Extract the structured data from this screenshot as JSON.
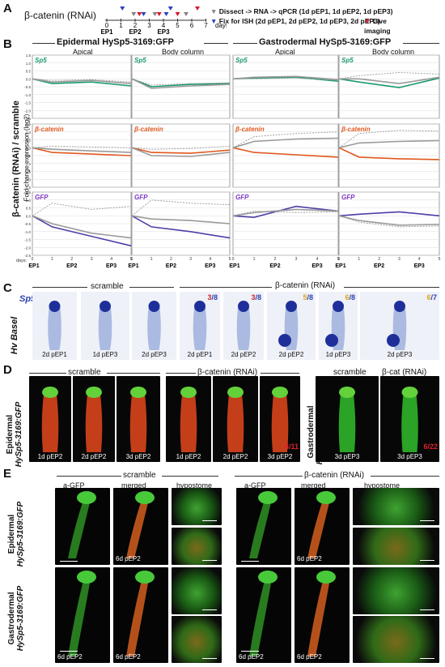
{
  "panelA": {
    "letter": "A",
    "title": "β-catenin (RNAi)",
    "axis_ticks": [
      "0",
      "1",
      "2",
      "3",
      "4",
      "5",
      "6",
      "7"
    ],
    "axis_unit": "days",
    "ep_labels": [
      "EP1",
      "EP2",
      "EP3"
    ],
    "legend": [
      {
        "text": "Dissect -> RNA -> qPCR (1d pEP1, 1d pEP2, 1d pEP3)",
        "color": "#8a7f82"
      },
      {
        "text": "Fix for ISH (2d pEP1, 2d pEP2, 1d pEP3, 2d pEP3)",
        "color": "#2b3fbf"
      },
      {
        "text": "Live imaging",
        "color": "#d61a2a"
      }
    ]
  },
  "panelB": {
    "letter": "B",
    "groups": [
      "Epidermal HySp5-3169:GFP",
      "Gastrodermal HySp5-3169:GFP"
    ],
    "subgroups": [
      "Apical",
      "Body column",
      "Apical",
      "Body column"
    ],
    "ylabel_main": "β-catenin (RNAi) / scramble",
    "ylabel_sub": "Fold change expression (log2)",
    "xlabel_prefix": "days:",
    "x_ticks": [
      "0",
      "1",
      "2",
      "3",
      "4",
      "5"
    ],
    "ep_ticks": [
      "EP1",
      "EP2",
      "EP3"
    ],
    "y_ticks": [
      "1.5",
      "1.0",
      "0.5",
      "0.0",
      "-0.5",
      "-1.0",
      "-1.5",
      "-2.0",
      "-2.5"
    ],
    "rows": [
      {
        "gene": "Sp5",
        "color": "#1a9a6a"
      },
      {
        "gene": "β-catenin",
        "color": "#e0581f"
      },
      {
        "gene": "GFP",
        "color": "#7b33c8"
      }
    ]
  },
  "chart_data": {
    "type": "line",
    "x": [
      0,
      1,
      3,
      5
    ],
    "ylim": [
      -2.5,
      1.5
    ],
    "ylabel": "Fold change expression (log2)",
    "charts": [
      {
        "row": "Sp5",
        "col": "Epidermal Apical",
        "series": [
          {
            "values": [
              0,
              -0.3,
              -0.2,
              -0.45
            ]
          },
          {
            "values": [
              0,
              -0.2,
              -0.1,
              -0.3
            ]
          },
          {
            "values": [
              0,
              -0.1,
              -0.05,
              -0.2
            ]
          }
        ]
      },
      {
        "row": "Sp5",
        "col": "Epidermal Body column",
        "series": [
          {
            "values": [
              0,
              -0.5,
              -0.35,
              -0.3
            ]
          },
          {
            "values": [
              0,
              -0.6,
              -0.45,
              -0.35
            ]
          },
          {
            "values": [
              0,
              -0.4,
              -0.3,
              -0.25
            ]
          }
        ]
      },
      {
        "row": "Sp5",
        "col": "Gastrodermal Apical",
        "series": [
          {
            "values": [
              0,
              0.05,
              0.1,
              -0.15
            ]
          },
          {
            "values": [
              0,
              0.1,
              0.15,
              -0.05
            ]
          },
          {
            "values": [
              0,
              0.0,
              0.05,
              -0.1
            ]
          }
        ]
      },
      {
        "row": "Sp5",
        "col": "Gastrodermal Body column",
        "series": [
          {
            "values": [
              0,
              -0.2,
              -0.55,
              0.05
            ]
          },
          {
            "values": [
              0,
              0,
              -0.3,
              0.1
            ]
          },
          {
            "values": [
              0,
              0.2,
              0.4,
              0.3
            ]
          }
        ]
      },
      {
        "row": "β-catenin",
        "col": "Epidermal Apical",
        "series": [
          {
            "values": [
              0,
              -0.3,
              -0.4,
              -0.5
            ]
          },
          {
            "values": [
              0,
              -0.1,
              -0.2,
              -0.3
            ]
          },
          {
            "values": [
              0,
              0.1,
              0.05,
              0.0
            ]
          }
        ]
      },
      {
        "row": "β-catenin",
        "col": "Epidermal Body column",
        "series": [
          {
            "values": [
              0,
              -0.3,
              -0.35,
              -0.15
            ]
          },
          {
            "values": [
              0,
              -0.5,
              -0.55,
              -0.3
            ]
          },
          {
            "values": [
              0,
              -0.1,
              -0.05,
              0.1
            ]
          }
        ]
      },
      {
        "row": "β-catenin",
        "col": "Gastrodermal Apical",
        "series": [
          {
            "values": [
              0,
              -0.3,
              -0.45,
              -0.6
            ]
          },
          {
            "values": [
              0,
              0.4,
              0.55,
              0.6
            ]
          },
          {
            "values": [
              0,
              0.7,
              0.9,
              1.0
            ]
          }
        ]
      },
      {
        "row": "β-catenin",
        "col": "Gastrodermal Body column",
        "series": [
          {
            "values": [
              0,
              -0.6,
              -0.7,
              -0.75
            ]
          },
          {
            "values": [
              0,
              0.3,
              0.4,
              0.45
            ]
          },
          {
            "values": [
              0,
              0.9,
              1.1,
              1.05
            ]
          }
        ]
      },
      {
        "row": "GFP",
        "col": "Epidermal Apical",
        "series": [
          {
            "values": [
              0,
              -0.7,
              -1.3,
              -1.9
            ]
          },
          {
            "values": [
              0,
              -0.5,
              -1.1,
              -1.4
            ]
          },
          {
            "values": [
              0,
              0.8,
              0.4,
              0.6
            ]
          }
        ]
      },
      {
        "row": "GFP",
        "col": "Epidermal Body column",
        "series": [
          {
            "values": [
              0,
              -0.7,
              -1.0,
              -1.4
            ]
          },
          {
            "values": [
              0,
              -0.2,
              -0.3,
              -0.5
            ]
          },
          {
            "values": [
              0,
              1.0,
              0.8,
              0.7
            ]
          }
        ]
      },
      {
        "row": "GFP",
        "col": "Gastrodermal Apical",
        "series": [
          {
            "values": [
              0,
              -0.1,
              0.6,
              0.3
            ]
          },
          {
            "values": [
              0,
              0.2,
              0.4,
              0.3
            ]
          },
          {
            "values": [
              0,
              0.3,
              0.2,
              0.25
            ]
          }
        ]
      },
      {
        "row": "GFP",
        "col": "Gastrodermal Body column",
        "series": [
          {
            "values": [
              0,
              0.1,
              0.25,
              0.0
            ]
          },
          {
            "values": [
              0,
              -0.3,
              -0.6,
              -0.55
            ]
          },
          {
            "values": [
              0,
              -0.4,
              -0.7,
              -0.65
            ]
          }
        ]
      }
    ]
  },
  "panelC": {
    "letter": "C",
    "scramble_label": "scramble",
    "rnai_label": "β-catenin (RNAi)",
    "gene_label": "Sp5",
    "strain_label": "Hv Basel",
    "images": [
      {
        "caption": "2d pEP1",
        "frac_num": "",
        "frac_den": ""
      },
      {
        "caption": "1d pEP3",
        "frac_num": "",
        "frac_den": ""
      },
      {
        "caption": "2d pEP3",
        "frac_num": "",
        "frac_den": ""
      },
      {
        "caption": "2d pEP1",
        "frac_num": "3",
        "frac_den": "/8"
      },
      {
        "caption": "2d pEP2",
        "frac_num": "3",
        "frac_den": "/8"
      },
      {
        "caption": "2d pEP2",
        "frac_num": "5",
        "frac_den": "/8"
      },
      {
        "caption": "1d pEP3",
        "frac_num": "6",
        "frac_den": "/8"
      },
      {
        "caption": "2d pEP3",
        "frac_num": "6",
        "frac_den": "/7"
      }
    ]
  },
  "panelD": {
    "letter": "D",
    "scramble_label": "scramble",
    "rnai_label": "β-catenin (RNAi)",
    "ylabel1": "Epidermal",
    "ylabel2": "HySp5-3169:GFP",
    "right_scramble": "scramble",
    "right_rnai": "β-cat (RNAi)",
    "right_ylabel1": "Gastrodermal",
    "right_ylabel2": "HySp5-3169:GFP",
    "captions": [
      "1d pEP2",
      "2d pEP2",
      "3d pEP2",
      "1d pEP2",
      "2d pEP2",
      "3d pEP2",
      "3d pEP3",
      "3d pEP3"
    ],
    "fraction1": "4/11",
    "fraction2": "6/22"
  },
  "panelE": {
    "letter": "E",
    "scramble_label": "scramble",
    "rnai_label": "β-catenin (RNAi)",
    "col_labels": [
      "a-GFP",
      "merged",
      "hypostome",
      "a-GFP",
      "merged",
      "hypostome"
    ],
    "row1_label1": "Epidermal",
    "row1_label2": "HySp5-3169:GFP",
    "row2_label1": "Gastrodermal",
    "row2_label2": "HySp5-3169:GFP",
    "caption": "6d pEP2"
  }
}
